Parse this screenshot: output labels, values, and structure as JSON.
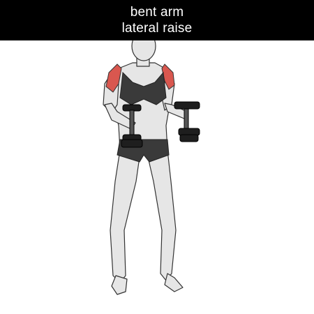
{
  "exercise": {
    "title_line1": "bent arm",
    "title_line2": "lateral raise"
  },
  "colors": {
    "title_bg": "#000000",
    "title_text": "#ffffff",
    "target_muscle": "#d9574f",
    "body_fill": "#e6e6e6",
    "body_stroke": "#333333",
    "apparel": "#3a3a3a",
    "dumbbell": "#1e1e1e"
  },
  "illustration": {
    "subject": "woman-standing-with-dumbbells-icon",
    "highlighted_muscles": "shoulders-deltoids-icon"
  }
}
